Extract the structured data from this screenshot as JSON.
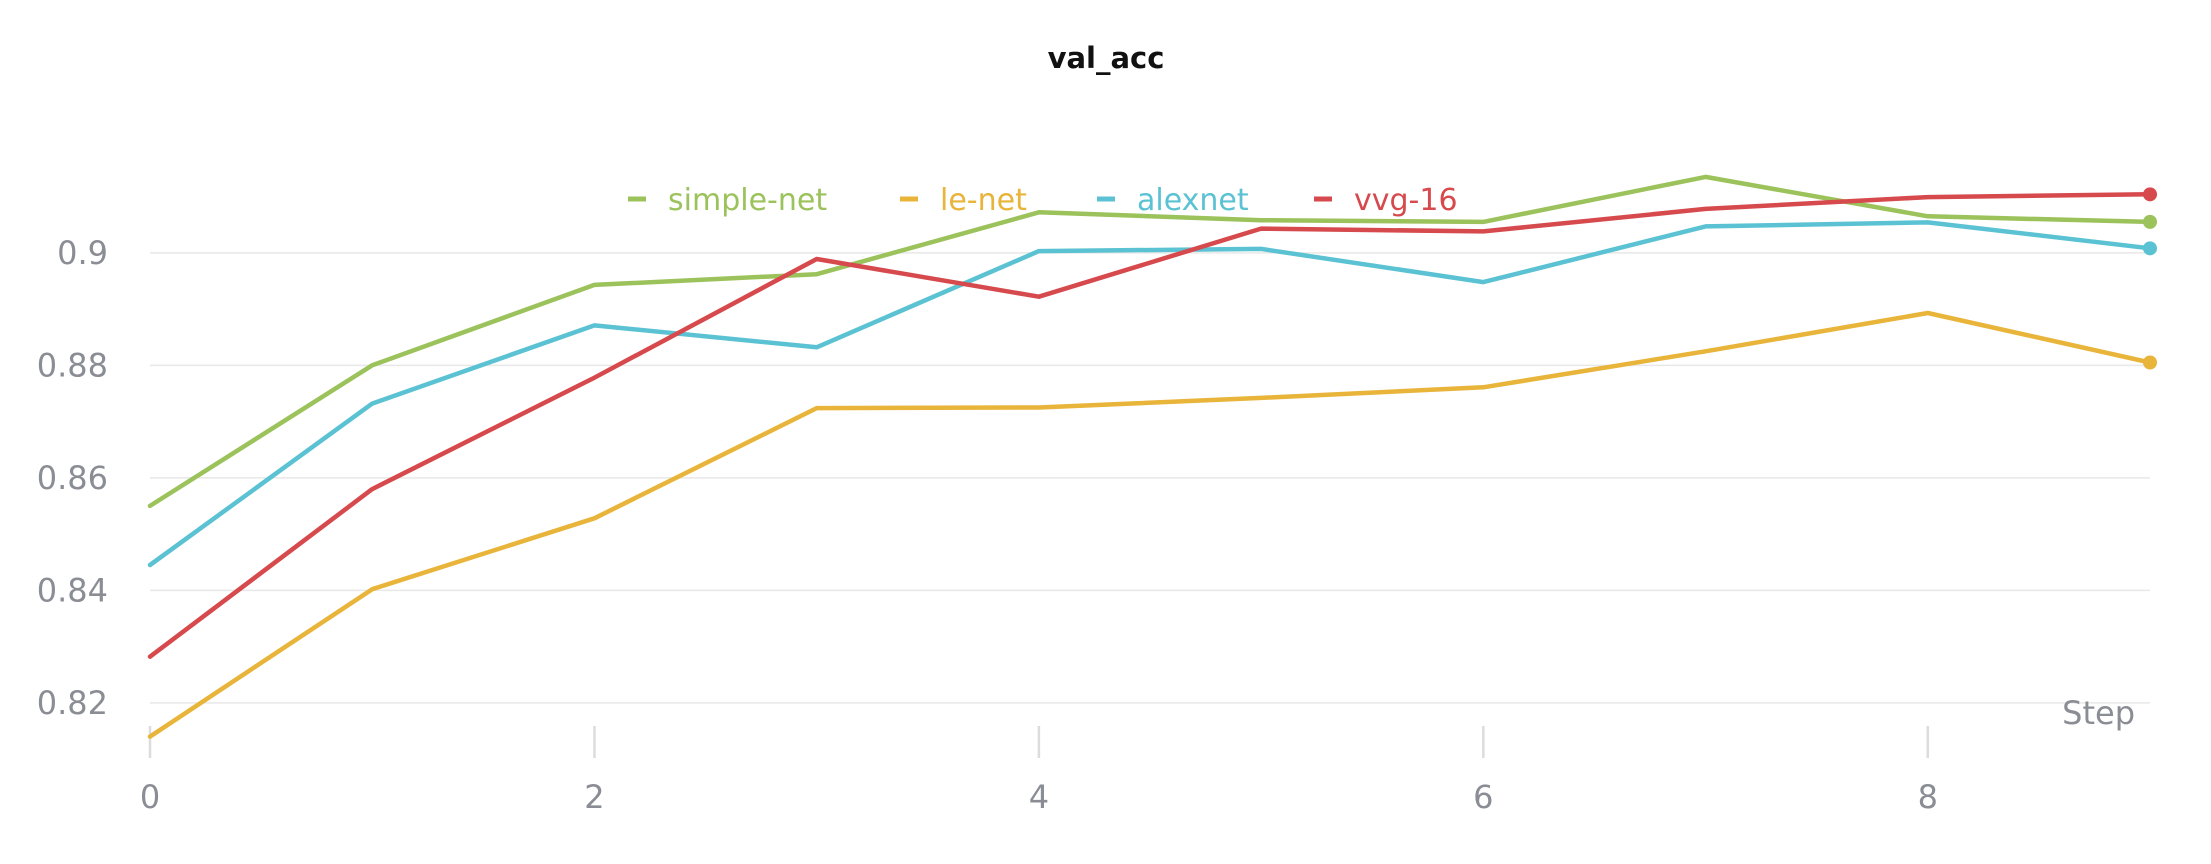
{
  "chart_data": {
    "type": "line",
    "title": "val_acc",
    "xlabel": "Step",
    "ylabel": "",
    "x": [
      0,
      1,
      2,
      3,
      4,
      5,
      6,
      7,
      8,
      9
    ],
    "xlim": [
      0,
      9
    ],
    "ylim": [
      0.8125,
      0.9165
    ],
    "xticks": [
      0,
      2,
      4,
      6,
      8
    ],
    "yticks": [
      0.82,
      0.84,
      0.86,
      0.88,
      0.9
    ],
    "ytick_labels": [
      "0.82",
      "0.84",
      "0.86",
      "0.88",
      "0.9"
    ],
    "grid": "horizontal",
    "legend_position": "top",
    "series": [
      {
        "name": "simple-net",
        "color": "#9bc25b",
        "values": [
          0.855,
          0.88,
          0.8943,
          0.8962,
          0.9072,
          0.9058,
          0.9055,
          0.9135,
          0.9065,
          0.9055
        ]
      },
      {
        "name": "le-net",
        "color": "#e8b43a",
        "values": [
          0.814,
          0.8402,
          0.8528,
          0.8724,
          0.8725,
          0.8742,
          0.8761,
          0.8825,
          0.8893,
          0.8805
        ]
      },
      {
        "name": "alexnet",
        "color": "#5bc2d3",
        "values": [
          0.8445,
          0.8732,
          0.8871,
          0.8832,
          0.9003,
          0.9007,
          0.8948,
          0.9047,
          0.9054,
          0.9008
        ]
      },
      {
        "name": "vvg-16",
        "color": "#d6494c",
        "values": [
          0.8282,
          0.858,
          0.8778,
          0.8989,
          0.8922,
          0.9043,
          0.9038,
          0.9078,
          0.9099,
          0.9104
        ]
      }
    ]
  }
}
